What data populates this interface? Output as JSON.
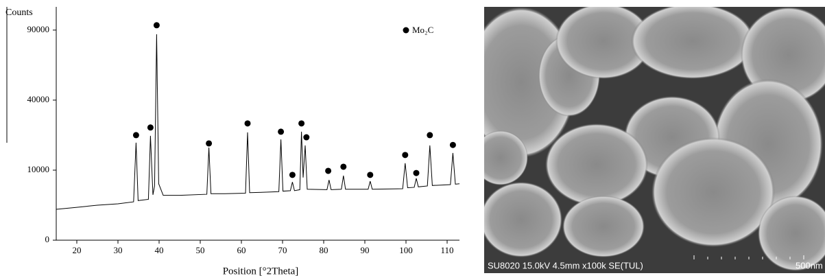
{
  "chart_data": {
    "type": "line",
    "y_axis_label": "Counts",
    "x_axis_label": "Position [°2Theta]",
    "xlim": [
      15,
      113
    ],
    "ylim": [
      0,
      111000
    ],
    "yscale": "sqrt",
    "xticks": [
      20,
      30,
      40,
      50,
      60,
      70,
      80,
      90,
      100,
      110
    ],
    "yticks": [
      0,
      10000,
      40000,
      90000
    ],
    "legend": "upper right",
    "series": [
      {
        "color": "#000000",
        "x": [
          15,
          20,
          25,
          30,
          33.8,
          34.4,
          34.9,
          37.4,
          37.9,
          38.5,
          38.9,
          39.4,
          39.9,
          41,
          45,
          51.6,
          52.1,
          52.6,
          56,
          61.0,
          61.5,
          62.0,
          66,
          69.1,
          69.6,
          70.1,
          71.9,
          72.4,
          72.9,
          74.2,
          74.6,
          75.0,
          75.5,
          76.0,
          80.8,
          81.3,
          81.8,
          84.3,
          84.8,
          85.3,
          90.8,
          91.3,
          91.8,
          99.2,
          99.8,
          100.4,
          102.0,
          102.5,
          103.0,
          105.2,
          105.8,
          106.4,
          110.8,
          111.4,
          112.0,
          113
        ],
        "values": [
          1950,
          2200,
          2500,
          2700,
          3000,
          19400,
          3200,
          3400,
          22200,
          4200,
          6000,
          86500,
          6500,
          4100,
          4100,
          4300,
          17500,
          4400,
          4400,
          4500,
          23700,
          4600,
          4700,
          4800,
          20700,
          4900,
          5000,
          6900,
          5000,
          5200,
          24000,
          8000,
          18300,
          5300,
          5200,
          7400,
          5200,
          5300,
          8500,
          5300,
          5300,
          7100,
          5300,
          5400,
          12100,
          5600,
          5700,
          7800,
          5800,
          6000,
          18300,
          6100,
          6300,
          15500,
          6400,
          6500
        ]
      },
      {
        "name": "Mo₂C",
        "type": "scatter",
        "color": "#000000",
        "x": [
          34.4,
          37.9,
          39.4,
          52.1,
          61.5,
          69.6,
          72.4,
          74.6,
          75.8,
          81.1,
          84.8,
          91.3,
          99.8,
          102.5,
          105.8,
          111.4
        ],
        "values": [
          22500,
          25900,
          94200,
          19100,
          27800,
          24000,
          8700,
          27800,
          21600,
          9800,
          11000,
          8700,
          14800,
          9200,
          22500,
          18500
        ]
      }
    ]
  },
  "sem_image": {
    "caption": "SU8020 15.0kV 4.5mm x100k SE(TUL)",
    "scale_label": "500nm"
  }
}
